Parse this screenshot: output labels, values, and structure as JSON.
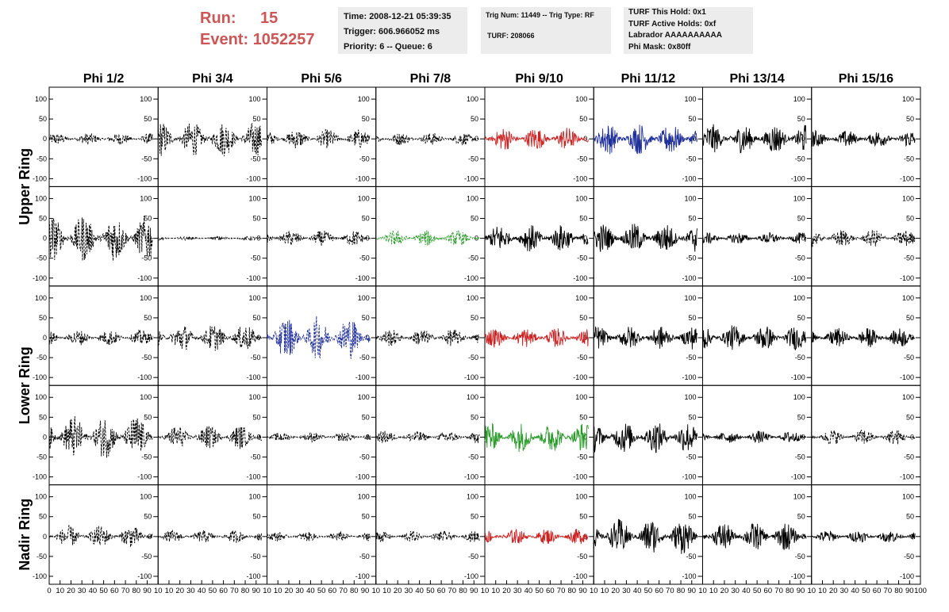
{
  "header": {
    "run_label": "Run:",
    "run_value": "15",
    "event_label": "Event:",
    "event_value": "1052257"
  },
  "info_time": {
    "time": "Time: 2008-12-21 05:39:35",
    "trigger": "Trigger: 606.966052 ms",
    "priority": "Priority: 6 -- Queue: 6"
  },
  "info_trig": {
    "trig": "Trig Num: 11449 -- Trig Type: RF",
    "turf": "TURF: 208066"
  },
  "info_turf": {
    "hold": "TURF This Hold: 0x1",
    "active": "TURF Active Holds: 0xf",
    "labrador": "Labrador AAAAAAAAAA",
    "phimask": "Phi Mask: 0x80ff"
  },
  "columns": [
    "Phi 1/2",
    "Phi 3/4",
    "Phi 5/6",
    "Phi 7/8",
    "Phi 9/10",
    "Phi 11/12",
    "Phi 13/14",
    "Phi 15/16"
  ],
  "ring_labels": [
    {
      "text": "Upper Ring"
    },
    {
      "text": "Lower Ring"
    },
    {
      "text": "Nadir Ring"
    }
  ],
  "chart_data": {
    "type": "line",
    "description_note": "",
    "xlim": [
      0,
      100
    ],
    "ylim": [
      -120,
      130
    ],
    "x_ticks": [
      0,
      10,
      20,
      30,
      40,
      50,
      60,
      70,
      80,
      90,
      100
    ],
    "x_tick_labels": [
      "0",
      "10",
      "20",
      "30",
      "40",
      "50",
      "60",
      "70",
      "80",
      "90",
      "100"
    ],
    "y_ticks": [
      -100,
      -50,
      0,
      50,
      100
    ],
    "y_tick_labels": [
      "-100",
      "-50",
      "0",
      "50",
      "100"
    ],
    "x_range_waveform": [
      0,
      95
    ],
    "colors": {
      "black": "#000000",
      "red": "#cc2222",
      "blue": "#1f2f9a",
      "green": "#2a9a2a"
    },
    "rows": [
      [
        "dash:15:black",
        "dash:45:black",
        "dash:25:black",
        "dash:16:black",
        "solid:30:red",
        "solid:40:blue",
        "solid:38:black",
        "solid:22:black"
      ],
      [
        "dash:60:black",
        "dash:5:black",
        "dash:20:black",
        "dash:20:green",
        "solid:35:black",
        "solid:38:black",
        "solid:15:black",
        "dash:22:black"
      ],
      [
        "dash:20:black",
        "dash:35:black",
        "dash:55:blue",
        "dash:22:black",
        "solid:25:red",
        "solid:30:black",
        "solid:32:black",
        "solid:25:black"
      ],
      [
        "dash:55:black",
        "dash:30:black",
        "dash:12:black",
        "dash:16:black",
        "solid:38:green",
        "solid:40:black",
        "solid:16:black",
        "dash:20:black"
      ],
      [
        "dash:28:black",
        "dash:16:black",
        "dash:12:black",
        "dash:14:black",
        "solid:20:red",
        "solid:45:black",
        "solid:36:black",
        "solid:16:black"
      ]
    ]
  }
}
